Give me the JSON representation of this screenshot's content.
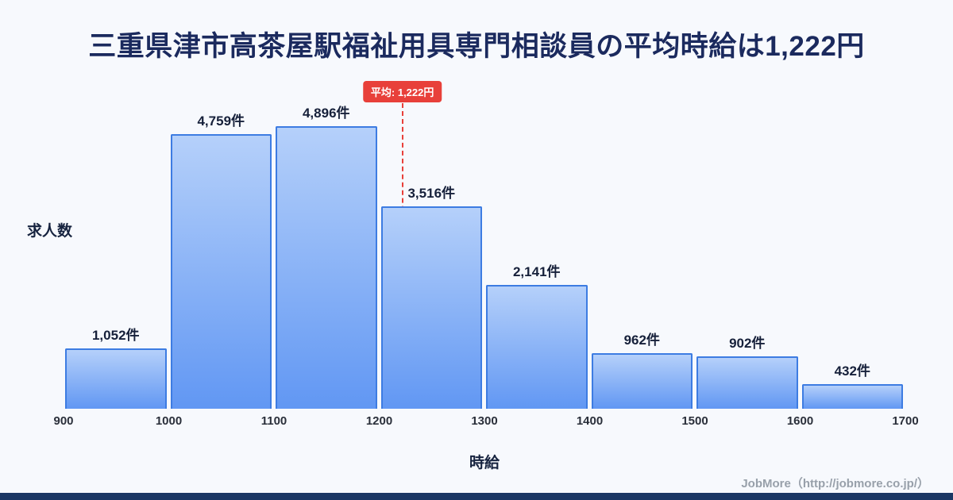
{
  "title": "三重県津市高茶屋駅福祉用具専門相談員の平均時給は1,222円",
  "chart_data": {
    "type": "bar",
    "title": "三重県津市高茶屋駅福祉用具専門相談員の平均時給は1,222円",
    "xlabel": "時給",
    "ylabel": "求人数",
    "bins": [
      900,
      1000,
      1100,
      1200,
      1300,
      1400,
      1500,
      1600,
      1700
    ],
    "categories": [
      "900-1000",
      "1000-1100",
      "1100-1200",
      "1200-1300",
      "1300-1400",
      "1400-1500",
      "1500-1600",
      "1600-1700"
    ],
    "values": [
      1052,
      4759,
      4896,
      3516,
      2141,
      962,
      902,
      432
    ],
    "labels": [
      "1,052件",
      "4,759件",
      "4,896件",
      "3,516件",
      "2,141件",
      "962件",
      "902件",
      "432件"
    ],
    "x_ticks": [
      "900",
      "1000",
      "1100",
      "1200",
      "1300",
      "1400",
      "1500",
      "1600",
      "1700"
    ],
    "xlim": [
      900,
      1700
    ],
    "ylim": [
      0,
      5300
    ],
    "grid": false,
    "legend": false,
    "mean": {
      "value": 1222,
      "label": "平均: 1,222円"
    },
    "colors": {
      "bar_top": "#b5d0fa",
      "bar_bottom": "#6197f3",
      "bar_border": "#3d7ce2",
      "mean_line": "#e8403a",
      "badge_bg": "#e8403a",
      "badge_text": "#ffffff",
      "title_text": "#1b2a5e",
      "accent_bar": "#1b3764",
      "background": "#f7f9fd"
    }
  },
  "footer": {
    "credit": "JobMore（http://jobmore.co.jp/）"
  }
}
